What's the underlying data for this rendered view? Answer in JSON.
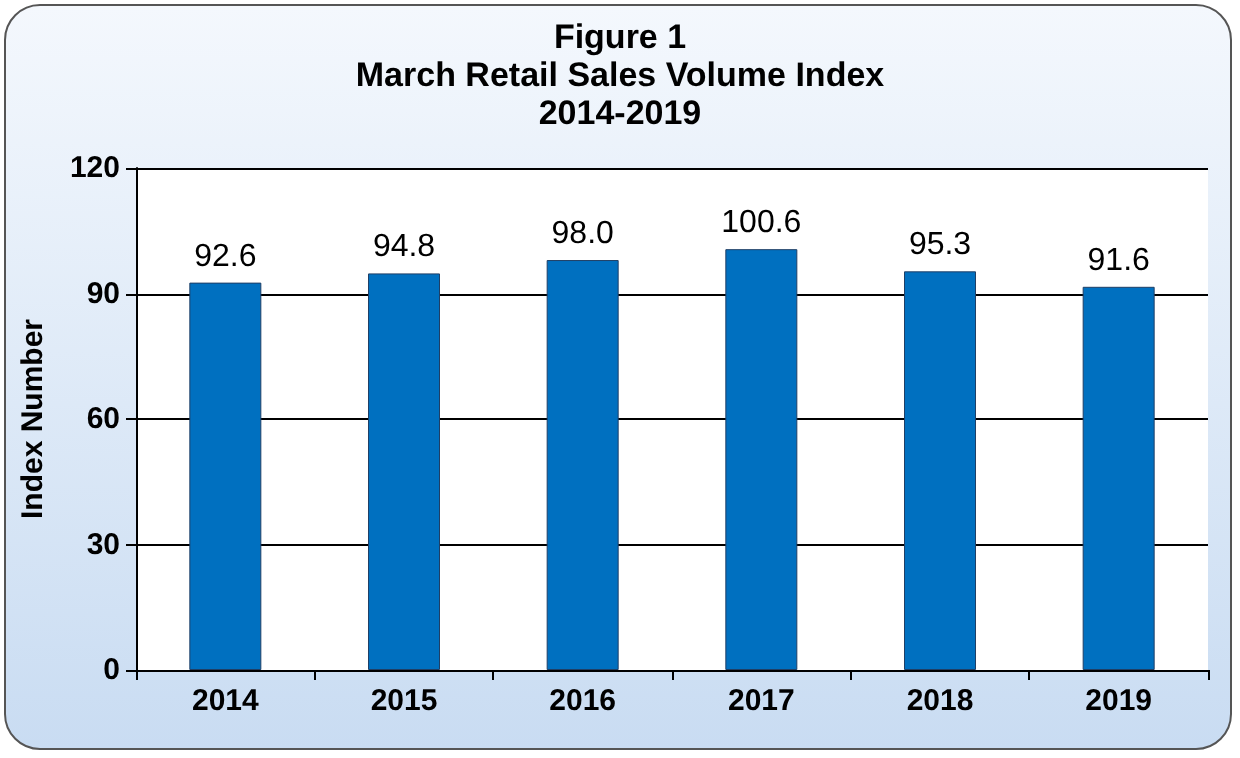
{
  "chart_data": {
    "type": "bar",
    "title": "Figure 1\nMarch Retail Sales Volume Index\n2014-2019",
    "ylabel": "Index Number",
    "categories": [
      "2014",
      "2015",
      "2016",
      "2017",
      "2018",
      "2019"
    ],
    "values": [
      92.6,
      94.8,
      98.0,
      100.6,
      95.3,
      91.6
    ],
    "color": "#0070c0",
    "value_labels": [
      "92.6",
      "94.8",
      "98.0",
      "100.6",
      "95.3",
      "91.6"
    ],
    "ylim": [
      0,
      120
    ],
    "yticks": [
      0,
      30,
      60,
      90,
      120
    ],
    "grid": "y"
  }
}
